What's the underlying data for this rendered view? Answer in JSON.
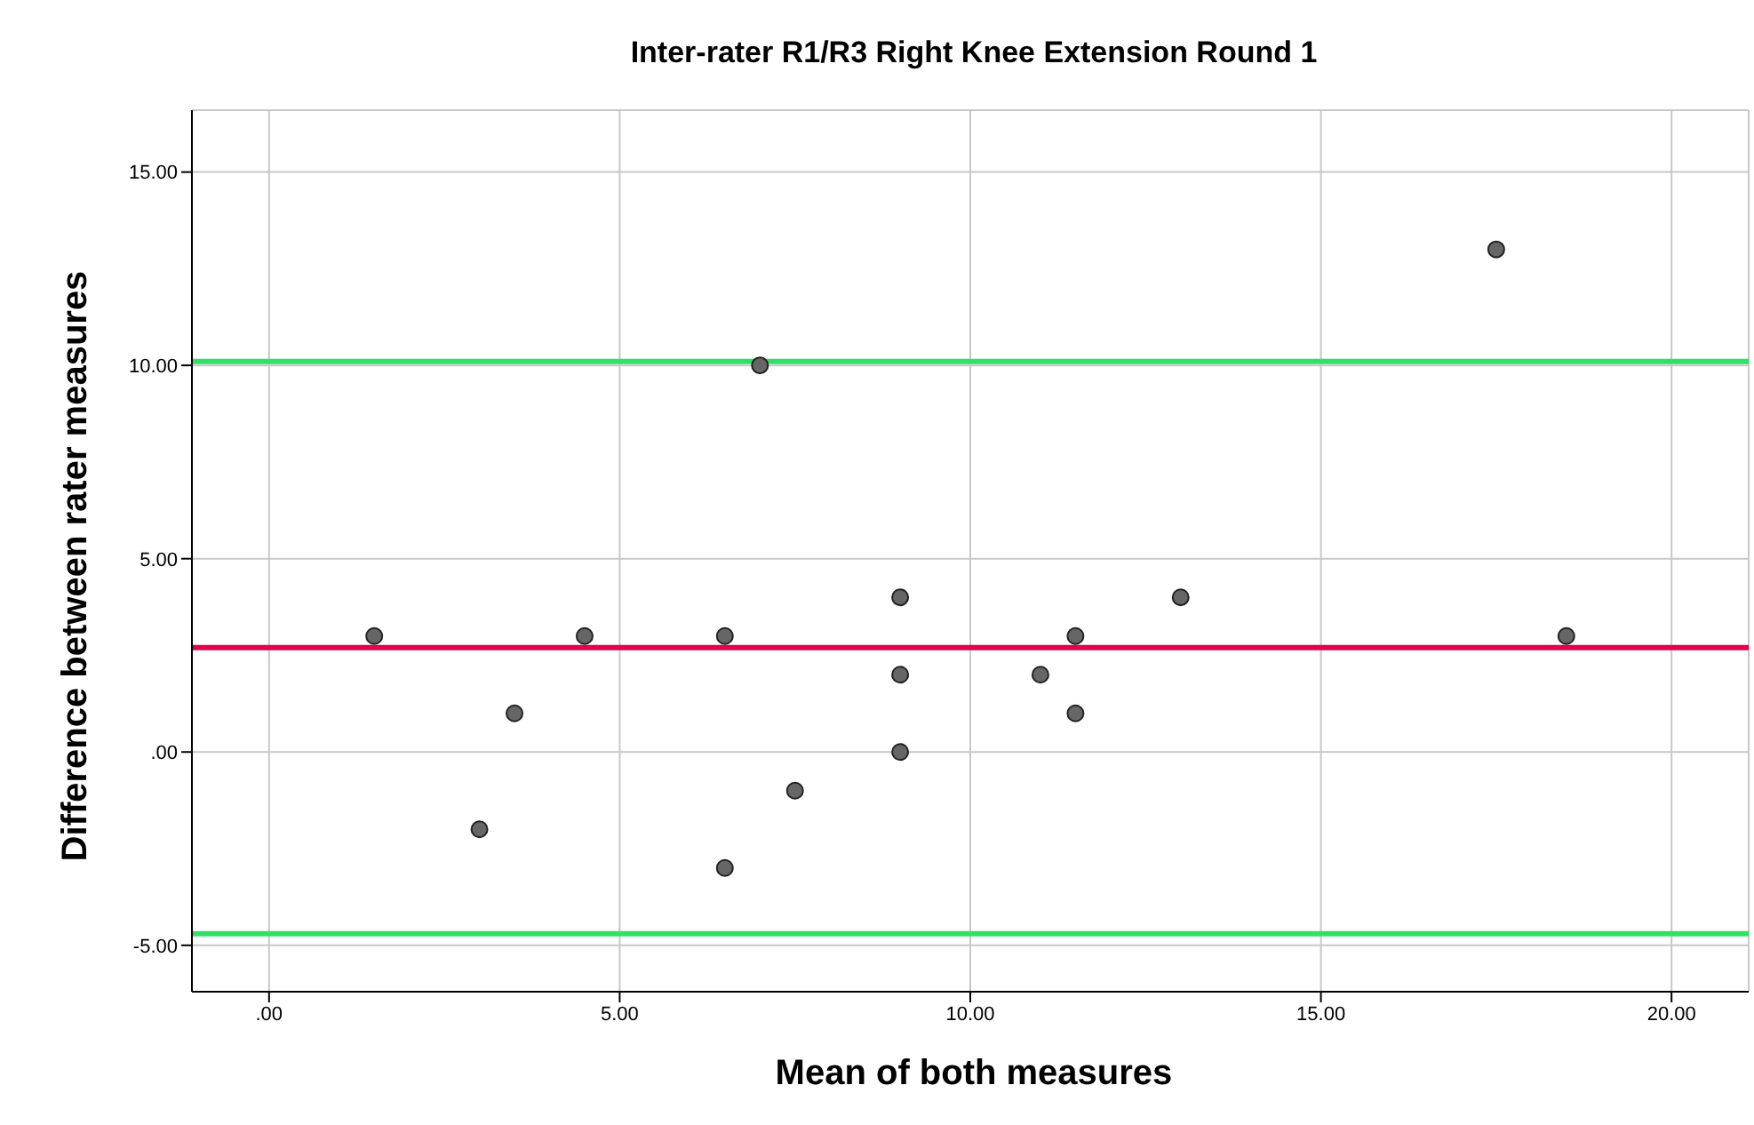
{
  "chart_data": {
    "type": "scatter",
    "title": "Inter-rater R1/R3 Right Knee Extension Round 1",
    "xlabel": "Mean of both measures",
    "ylabel": "Difference between rater measures",
    "x": [
      1.5,
      3,
      3.5,
      4.5,
      6.5,
      6.5,
      7,
      7.5,
      9,
      9,
      9,
      11,
      11.5,
      11.5,
      13,
      17.5,
      18.5
    ],
    "values": [
      3,
      -2,
      1,
      3,
      3,
      -3,
      10,
      -1,
      4,
      2,
      0,
      2,
      3,
      1,
      4,
      13,
      3
    ],
    "color": "#666666",
    "marker": "circle",
    "xlim": [
      -1.1,
      21.1
    ],
    "ylim": [
      -6.2,
      16.6
    ],
    "xticks": [
      {
        "value": 0,
        "label": ".00"
      },
      {
        "value": 5,
        "label": "5.00"
      },
      {
        "value": 10,
        "label": "10.00"
      },
      {
        "value": 15,
        "label": "15.00"
      },
      {
        "value": 20,
        "label": "20.00"
      }
    ],
    "yticks": [
      {
        "value": -5,
        "label": "-5.00"
      },
      {
        "value": 0,
        "label": ".00"
      },
      {
        "value": 5,
        "label": "5.00"
      },
      {
        "value": 10,
        "label": "10.00"
      },
      {
        "value": 15,
        "label": "15.00"
      }
    ],
    "grid": true,
    "ref_lines": [
      {
        "axis": "y",
        "value": 10.1,
        "color": "#33e066"
      },
      {
        "axis": "y",
        "value": 2.7,
        "color": "#e0004d"
      },
      {
        "axis": "y",
        "value": -4.7,
        "color": "#33e066"
      }
    ]
  }
}
